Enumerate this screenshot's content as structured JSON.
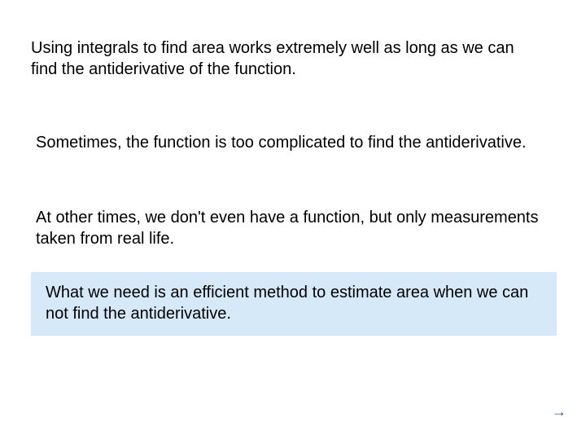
{
  "slide": {
    "background_color": "#ffffff",
    "text_color": "#000000",
    "font_family": "Arial",
    "font_size_pt": 20,
    "paragraphs": {
      "p1": "Using integrals to find area works extremely well as long as we can find the antiderivative of the function.",
      "p2": "Sometimes, the function is too complicated to find the antiderivative.",
      "p3": "At other times, we don't even have a function, but only measurements taken from real life.",
      "p4": "What we need is an efficient method to estimate area when we can not find the antiderivative."
    },
    "highlight": {
      "background_color": "#d6e9f8"
    },
    "nav_arrow": {
      "glyph": "→",
      "color": "#3a5a7a"
    }
  }
}
